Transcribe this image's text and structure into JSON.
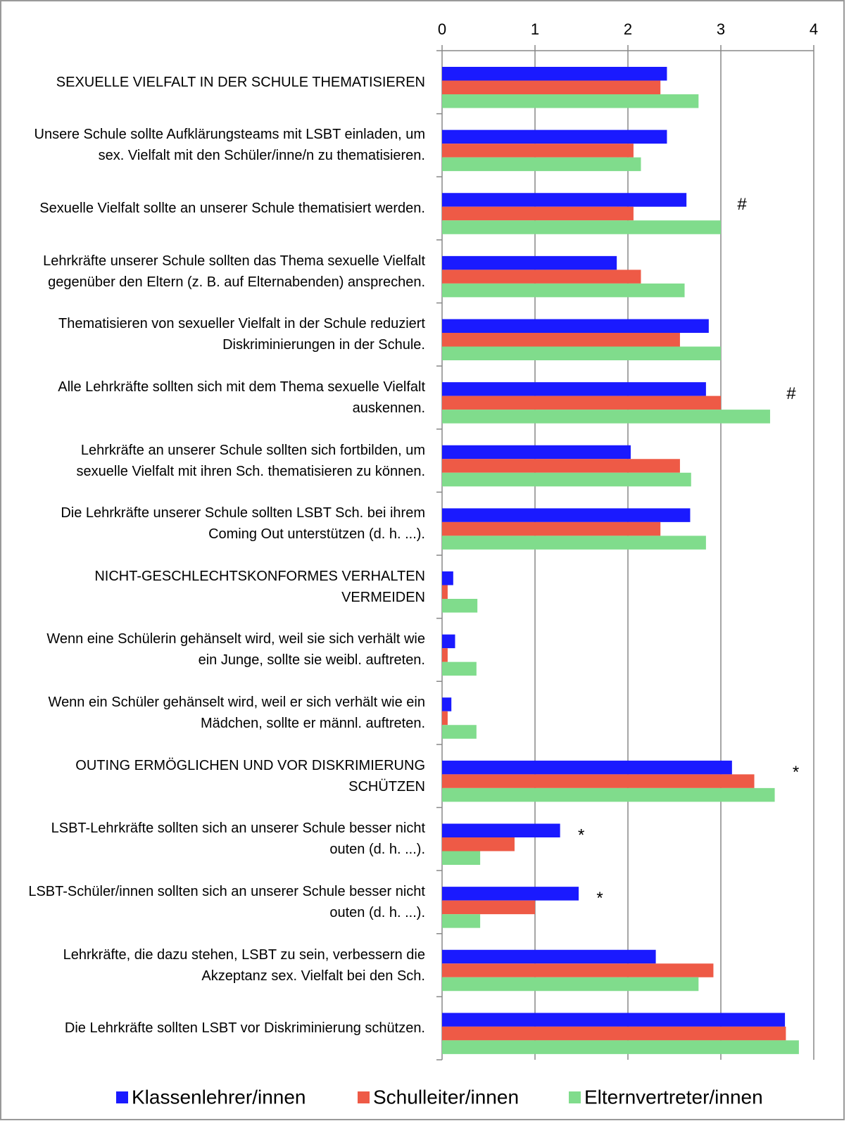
{
  "chart_data": {
    "type": "hbar",
    "categories": [
      "SEXUELLE VIELFALT IN DER SCHULE THEMATISIEREN",
      "Unsere Schule sollte Aufklärungsteams mit LSBT einladen, um sex. Vielfalt mit den Schüler/inne/n zu thematisieren.",
      "Sexuelle Vielfalt sollte an unserer Schule thematisiert werden.",
      "Lehrkräfte unserer Schule sollten das Thema sexuelle Vielfalt gegenüber den Eltern (z. B. auf Elternabenden) ansprechen.",
      "Thematisieren von sexueller Vielfalt in der Schule reduziert Diskriminierungen in der Schule.",
      "Alle Lehrkräfte sollten sich mit dem Thema sexuelle Vielfalt auskennen.",
      "Lehrkräfte an unserer Schule sollten sich fortbilden, um sexuelle Vielfalt mit ihren Sch. thematisieren zu können.",
      "Die Lehrkräfte unserer Schule sollten LSBT Sch. bei ihrem Coming Out unterstützen (d. h. ...).",
      "NICHT-GESCHLECHTSKONFORMES VERHALTEN VERMEIDEN",
      "Wenn eine Schülerin gehänselt wird, weil sie sich verhält wie ein Junge, sollte sie weibl. auftreten.",
      "Wenn ein Schüler gehänselt wird, weil er sich verhält wie ein Mädchen, sollte er männl. auftreten.",
      "OUTING ERMÖGLICHEN UND VOR DISKRIMIERUNG SCHÜTZEN",
      "LSBT-Lehrkräfte sollten sich an unserer Schule besser nicht outen (d. h. ...).",
      "LSBT-Schüler/innen sollten sich an unserer Schule besser nicht outen (d. h. ...).",
      "Lehrkräfte, die dazu stehen, LSBT zu sein, verbessern die Akzeptanz sex. Vielfalt bei den Sch.",
      "Die Lehrkräfte sollten LSBT vor Diskriminierung schützen."
    ],
    "series": [
      {
        "name": "Klassenlehrer/innen",
        "color": "#1a1aff",
        "values": [
          2.42,
          2.42,
          2.63,
          1.88,
          2.87,
          2.84,
          2.03,
          2.67,
          0.12,
          0.14,
          0.1,
          3.12,
          1.27,
          1.47,
          2.3,
          3.69
        ]
      },
      {
        "name": "Schulleiter/innen",
        "color": "#ee5a46",
        "values": [
          2.35,
          2.06,
          2.06,
          2.14,
          2.56,
          3.0,
          2.56,
          2.35,
          0.06,
          0.06,
          0.06,
          3.36,
          0.78,
          1.0,
          2.92,
          3.7
        ]
      },
      {
        "name": "Elternvertreter/innen",
        "color": "#80dc8c",
        "values": [
          2.76,
          2.14,
          3.0,
          2.61,
          3.0,
          3.53,
          2.68,
          2.84,
          0.38,
          0.37,
          0.37,
          3.58,
          0.41,
          0.41,
          2.76,
          3.84
        ]
      }
    ],
    "annotations": [
      null,
      null,
      "#",
      null,
      null,
      "#",
      null,
      null,
      null,
      null,
      null,
      "*",
      "*",
      "*",
      null,
      null
    ],
    "xlim": [
      0,
      4
    ],
    "xticks": [
      0,
      1,
      2,
      3,
      4
    ],
    "grid": true,
    "legend": "bottom"
  }
}
